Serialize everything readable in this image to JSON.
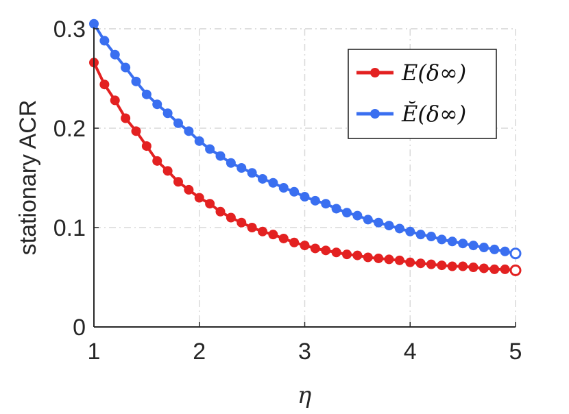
{
  "chart_data": {
    "type": "line",
    "xlabel": "η",
    "ylabel": "stationary ACR",
    "xlim": [
      1,
      5
    ],
    "ylim": [
      0,
      0.3
    ],
    "x_ticks": [
      "1",
      "2",
      "3",
      "4",
      "5"
    ],
    "y_ticks": [
      "0",
      "0.1",
      "0.2",
      "0.3"
    ],
    "grid": true,
    "legend_position": "top-right",
    "x": [
      1.0,
      1.1,
      1.2,
      1.3,
      1.4,
      1.5,
      1.6,
      1.7,
      1.8,
      1.9,
      2.0,
      2.1,
      2.2,
      2.3,
      2.4,
      2.5,
      2.6,
      2.7,
      2.8,
      2.9,
      3.0,
      3.1,
      3.2,
      3.3,
      3.4,
      3.5,
      3.6,
      3.7,
      3.8,
      3.9,
      4.0,
      4.1,
      4.2,
      4.3,
      4.4,
      4.5,
      4.6,
      4.7,
      4.8,
      4.9,
      5.0
    ],
    "series": [
      {
        "name": "E(δ∞)",
        "color": "#e32121",
        "values": [
          0.266,
          0.244,
          0.228,
          0.21,
          0.197,
          0.182,
          0.167,
          0.157,
          0.146,
          0.138,
          0.13,
          0.124,
          0.116,
          0.11,
          0.105,
          0.1,
          0.096,
          0.093,
          0.089,
          0.085,
          0.082,
          0.079,
          0.077,
          0.075,
          0.073,
          0.072,
          0.07,
          0.069,
          0.068,
          0.067,
          0.065,
          0.064,
          0.063,
          0.062,
          0.061,
          0.061,
          0.06,
          0.059,
          0.058,
          0.058,
          0.057
        ]
      },
      {
        "name": "Ĕ(δ∞)",
        "color": "#3a6ff0",
        "values": [
          0.305,
          0.288,
          0.274,
          0.261,
          0.247,
          0.234,
          0.224,
          0.215,
          0.205,
          0.197,
          0.187,
          0.179,
          0.172,
          0.165,
          0.16,
          0.155,
          0.149,
          0.145,
          0.14,
          0.136,
          0.131,
          0.127,
          0.124,
          0.119,
          0.115,
          0.112,
          0.108,
          0.105,
          0.102,
          0.099,
          0.096,
          0.093,
          0.091,
          0.088,
          0.086,
          0.084,
          0.082,
          0.08,
          0.078,
          0.076,
          0.074
        ]
      }
    ]
  }
}
